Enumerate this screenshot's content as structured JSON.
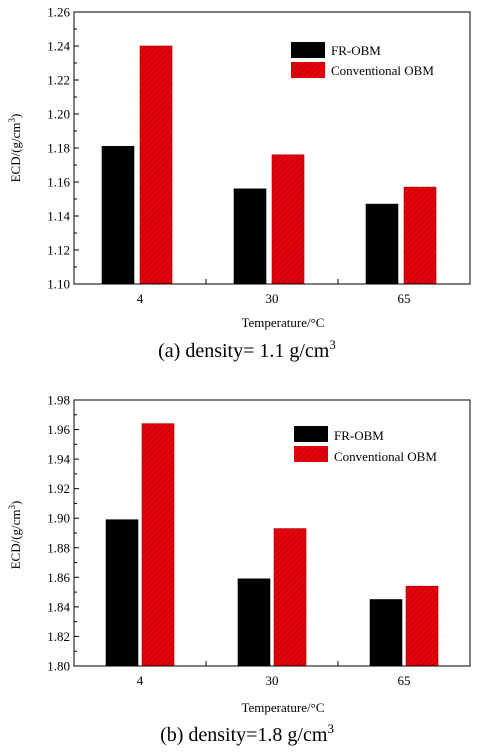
{
  "colors": {
    "fr_obm": "#000000",
    "conventional_obm": "#e8000b",
    "hatch": "#9a0000",
    "axis": "#000000"
  },
  "chart_data": [
    {
      "type": "bar",
      "title": "",
      "xlabel": "Temperature/°C",
      "ylabel": "ECD/(g/cm³)",
      "ylabel_base": "ECD/(g/cm",
      "ylabel_sup": "3",
      "ylabel_tail": ")",
      "categories": [
        "4",
        "30",
        "65"
      ],
      "ylim": [
        1.1,
        1.26
      ],
      "yticks": [
        "1.10",
        "1.12",
        "1.14",
        "1.16",
        "1.18",
        "1.20",
        "1.22",
        "1.24",
        "1.26"
      ],
      "series": [
        {
          "name": "FR-OBM",
          "values": [
            1.181,
            1.156,
            1.147
          ]
        },
        {
          "name": "Conventional OBM",
          "values": [
            1.24,
            1.176,
            1.157
          ]
        }
      ],
      "legend_position": "top-right",
      "grid": false,
      "caption_base": "(a) density= 1.1 g/cm",
      "caption_sup": "3"
    },
    {
      "type": "bar",
      "title": "",
      "xlabel": "Temperature/°C",
      "ylabel": "ECD/(g/cm³)",
      "ylabel_base": "ECD/(g/cm",
      "ylabel_sup": "3",
      "ylabel_tail": ")",
      "categories": [
        "4",
        "30",
        "65"
      ],
      "ylim": [
        1.8,
        1.98
      ],
      "yticks": [
        "1.80",
        "1.82",
        "1.84",
        "1.86",
        "1.88",
        "1.90",
        "1.92",
        "1.94",
        "1.96",
        "1.98"
      ],
      "series": [
        {
          "name": "FR-OBM",
          "values": [
            1.899,
            1.859,
            1.845
          ]
        },
        {
          "name": "Conventional OBM",
          "values": [
            1.964,
            1.893,
            1.854
          ]
        }
      ],
      "legend_position": "top-right",
      "grid": false,
      "caption_base": "(b) density=1.8 g/cm",
      "caption_sup": "3"
    }
  ]
}
